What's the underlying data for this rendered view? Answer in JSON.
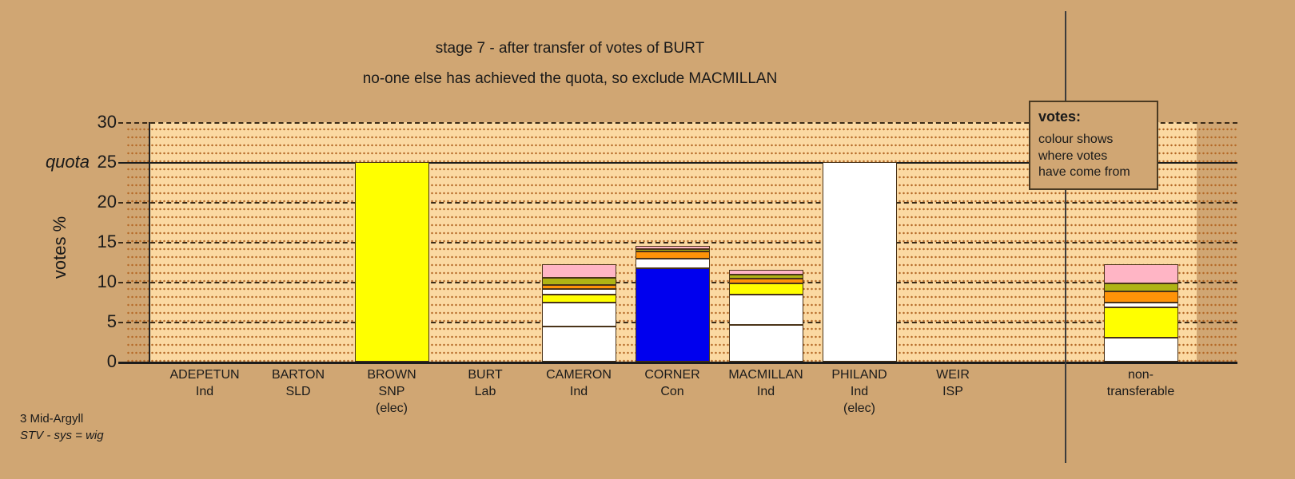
{
  "title": {
    "line1": "stage 7 - after transfer of votes of BURT",
    "line2": "no-one else has achieved the quota, so exclude MACMILLAN"
  },
  "legend": {
    "title": "votes:",
    "lines": [
      "colour shows",
      "where votes",
      "have come from"
    ]
  },
  "footer": {
    "line1": "3 Mid-Argyll",
    "line2": "STV - sys = wig"
  },
  "y_axis": {
    "label": "votes %",
    "quota_label": "quota",
    "ticks": [
      0,
      5,
      10,
      15,
      20,
      25,
      30
    ],
    "quota_value": 25
  },
  "colors": {
    "background": "#D0A673",
    "plot_background": "#FBD9A2",
    "grid_dot": "#B56A28",
    "grid_major": "#3A2A18",
    "axis": "#1C1C1C",
    "bar_border": "#4A3318",
    "separator": "#3C3C3C",
    "white": "#FFFFFF",
    "yellow": "#FFFF00",
    "orange": "#FF9308",
    "olive": "#AFB414",
    "pink": "#FFB5C5",
    "blue": "#0000EE"
  },
  "chart_data": {
    "type": "stacked-bar",
    "title": "stage 7 - after transfer of votes of BURT",
    "subtitle": "no-one else has achieved the quota, so exclude MACMILLAN",
    "ylabel": "votes %",
    "ylim": [
      0,
      30
    ],
    "yticks": [
      0,
      5,
      10,
      15,
      20,
      25,
      30
    ],
    "quota": 25,
    "grid": "major dashed every 5, minor dotted every 1",
    "legend_position": "top-right",
    "bars": [
      {
        "name": "ADEPETUN",
        "label_lines": [
          "ADEPETUN",
          "Ind"
        ],
        "total": 0,
        "segments": []
      },
      {
        "name": "BARTON",
        "label_lines": [
          "BARTON",
          "SLD"
        ],
        "total": 0,
        "segments": []
      },
      {
        "name": "BROWN",
        "label_lines": [
          "BROWN",
          "SNP",
          "(elec)"
        ],
        "total": 25,
        "segments": [
          {
            "color": "yellow",
            "value": 25
          }
        ]
      },
      {
        "name": "BURT",
        "label_lines": [
          "BURT",
          "Lab"
        ],
        "total": 0,
        "segments": []
      },
      {
        "name": "CAMERON",
        "label_lines": [
          "CAMERON",
          "Ind"
        ],
        "total": 12.2,
        "segments": [
          {
            "color": "white",
            "value": 4.4
          },
          {
            "color": "white",
            "value": 3.0
          },
          {
            "color": "yellow",
            "value": 1.0
          },
          {
            "color": "white",
            "value": 0.7
          },
          {
            "color": "orange",
            "value": 0.5
          },
          {
            "color": "olive",
            "value": 0.9
          },
          {
            "color": "pink",
            "value": 1.7
          }
        ]
      },
      {
        "name": "CORNER",
        "label_lines": [
          "CORNER",
          "Con"
        ],
        "total": 14.5,
        "segments": [
          {
            "color": "blue",
            "value": 11.7
          },
          {
            "color": "white",
            "value": 1.2
          },
          {
            "color": "orange",
            "value": 0.9
          },
          {
            "color": "olive",
            "value": 0.3
          },
          {
            "color": "pink",
            "value": 0.4
          }
        ]
      },
      {
        "name": "MACMILLAN",
        "label_lines": [
          "MACMILLAN",
          "Ind"
        ],
        "total": 11.5,
        "segments": [
          {
            "color": "white",
            "value": 4.6
          },
          {
            "color": "white",
            "value": 3.8
          },
          {
            "color": "yellow",
            "value": 1.4
          },
          {
            "color": "orange",
            "value": 0.6
          },
          {
            "color": "olive",
            "value": 0.5
          },
          {
            "color": "pink",
            "value": 0.6
          }
        ]
      },
      {
        "name": "PHILAND",
        "label_lines": [
          "PHILAND",
          "Ind",
          "(elec)"
        ],
        "total": 25,
        "segments": [
          {
            "color": "white",
            "value": 25
          }
        ]
      },
      {
        "name": "WEIR",
        "label_lines": [
          "WEIR",
          "ISP"
        ],
        "total": 0,
        "segments": []
      },
      {
        "name": "non-transferable",
        "label_lines": [
          "non-",
          "transferable"
        ],
        "total": 12.2,
        "segments": [
          {
            "color": "white",
            "value": 3.0
          },
          {
            "color": "yellow",
            "value": 3.8
          },
          {
            "color": "white",
            "value": 0.6
          },
          {
            "color": "orange",
            "value": 1.4
          },
          {
            "color": "olive",
            "value": 1.0
          },
          {
            "color": "pink",
            "value": 2.4
          }
        ]
      }
    ]
  }
}
